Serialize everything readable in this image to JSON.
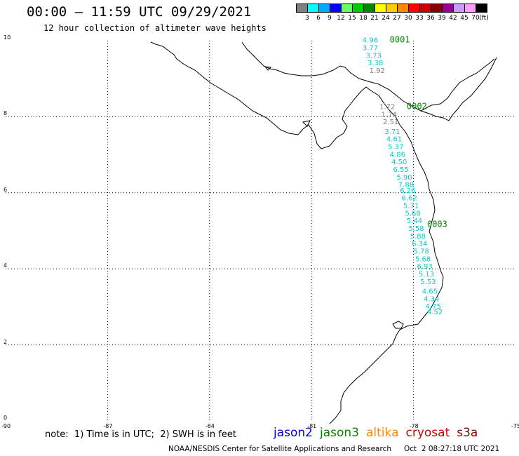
{
  "header": {
    "title": "00:00 – 11:59 UTC 09/29/2021",
    "subtitle": "12 hour collection of altimeter wave heights"
  },
  "legend": {
    "unit_label": "(ft)",
    "bins": [
      {
        "label": "3",
        "color": "#808080"
      },
      {
        "label": "6",
        "color": "#00ffff"
      },
      {
        "label": "9",
        "color": "#00aaff"
      },
      {
        "label": "12",
        "color": "#0000ff"
      },
      {
        "label": "15",
        "color": "#66ff66"
      },
      {
        "label": "18",
        "color": "#00cc00"
      },
      {
        "label": "21",
        "color": "#008800"
      },
      {
        "label": "24",
        "color": "#ffff00"
      },
      {
        "label": "27",
        "color": "#ffcc00"
      },
      {
        "label": "30",
        "color": "#ff8800"
      },
      {
        "label": "33",
        "color": "#ff0000"
      },
      {
        "label": "36",
        "color": "#cc0000"
      },
      {
        "label": "39",
        "color": "#880000"
      },
      {
        "label": "42",
        "color": "#990099"
      },
      {
        "label": "45",
        "color": "#cc99ff"
      },
      {
        "label": "70",
        "color": "#ff99ff"
      },
      {
        "label": "",
        "color": "#000000"
      }
    ]
  },
  "axes": {
    "lon_ticks": [
      "-90",
      "-87",
      "-84",
      "-81",
      "-78",
      "-75"
    ],
    "lat_ticks": [
      "0",
      "2",
      "4",
      "6",
      "8",
      "10"
    ]
  },
  "time_labels": [
    {
      "text": "0001",
      "lon": -78.7,
      "lat": 9.95
    },
    {
      "text": "0002",
      "lon": -78.2,
      "lat": 8.2
    },
    {
      "text": "0003",
      "lon": -77.6,
      "lat": 5.1
    }
  ],
  "observations": [
    {
      "lon": -79.5,
      "lat": 9.95,
      "swh": "4.96",
      "color": "#00cccc"
    },
    {
      "lon": -79.5,
      "lat": 9.75,
      "swh": "3.77",
      "color": "#00cccc"
    },
    {
      "lon": -79.4,
      "lat": 9.55,
      "swh": "3.73",
      "color": "#00cccc"
    },
    {
      "lon": -79.35,
      "lat": 9.35,
      "swh": "3.38",
      "color": "#00cccc"
    },
    {
      "lon": -79.3,
      "lat": 9.15,
      "swh": "1.92",
      "color": "#808080"
    },
    {
      "lon": -79.0,
      "lat": 8.2,
      "swh": "1.72",
      "color": "#808080"
    },
    {
      "lon": -78.95,
      "lat": 8.0,
      "swh": "1.74",
      "color": "#808080"
    },
    {
      "lon": -78.9,
      "lat": 7.8,
      "swh": "2.51",
      "color": "#808080"
    },
    {
      "lon": -78.85,
      "lat": 7.55,
      "swh": "3.71",
      "color": "#00cccc"
    },
    {
      "lon": -78.8,
      "lat": 7.35,
      "swh": "4.61",
      "color": "#00cccc"
    },
    {
      "lon": -78.75,
      "lat": 7.15,
      "swh": "5.37",
      "color": "#00cccc"
    },
    {
      "lon": -78.7,
      "lat": 6.95,
      "swh": "4.86",
      "color": "#00cccc"
    },
    {
      "lon": -78.65,
      "lat": 6.75,
      "swh": "4.50",
      "color": "#00cccc"
    },
    {
      "lon": -78.6,
      "lat": 6.55,
      "swh": "6.55",
      "color": "#00cccc"
    },
    {
      "lon": -78.5,
      "lat": 6.35,
      "swh": "5.90",
      "color": "#00cccc"
    },
    {
      "lon": -78.45,
      "lat": 6.15,
      "swh": "7.88",
      "color": "#00cccc"
    },
    {
      "lon": -78.4,
      "lat": 6.0,
      "swh": "6.26",
      "color": "#00cccc"
    },
    {
      "lon": -78.35,
      "lat": 5.8,
      "swh": "6.62",
      "color": "#00cccc"
    },
    {
      "lon": -78.3,
      "lat": 5.6,
      "swh": "5.71",
      "color": "#00cccc"
    },
    {
      "lon": -78.25,
      "lat": 5.4,
      "swh": "5.68",
      "color": "#00cccc"
    },
    {
      "lon": -78.2,
      "lat": 5.2,
      "swh": "5.44",
      "color": "#00cccc"
    },
    {
      "lon": -78.15,
      "lat": 5.0,
      "swh": "5.58",
      "color": "#00cccc"
    },
    {
      "lon": -78.1,
      "lat": 4.8,
      "swh": "5.88",
      "color": "#00cccc"
    },
    {
      "lon": -78.05,
      "lat": 4.6,
      "swh": "6.34",
      "color": "#00cccc"
    },
    {
      "lon": -78.0,
      "lat": 4.4,
      "swh": "5.78",
      "color": "#00cccc"
    },
    {
      "lon": -77.95,
      "lat": 4.2,
      "swh": "5.68",
      "color": "#00cccc"
    },
    {
      "lon": -77.9,
      "lat": 4.0,
      "swh": "6.93",
      "color": "#00cccc"
    },
    {
      "lon": -77.85,
      "lat": 3.8,
      "swh": "5.13",
      "color": "#00cccc"
    },
    {
      "lon": -77.8,
      "lat": 3.6,
      "swh": "5.53",
      "color": "#00cccc"
    },
    {
      "lon": -77.75,
      "lat": 3.35,
      "swh": "4.65",
      "color": "#00cccc"
    },
    {
      "lon": -77.7,
      "lat": 3.15,
      "swh": "4.34",
      "color": "#00cccc"
    },
    {
      "lon": -77.65,
      "lat": 2.95,
      "swh": "4.75",
      "color": "#00cccc"
    },
    {
      "lon": -77.6,
      "lat": 2.8,
      "swh": "4.52",
      "color": "#00cccc"
    }
  ],
  "footer": {
    "note": "note:  1) Time is in UTC;  2) SWH is in feet",
    "satellites": [
      {
        "name": "jason2",
        "color": "#0000cc"
      },
      {
        "name": "jason3",
        "color": "#008800"
      },
      {
        "name": "altika",
        "color": "#ff8800"
      },
      {
        "name": "cryosat",
        "color": "#cc0000"
      },
      {
        "name": "s3a",
        "color": "#880000"
      }
    ],
    "credit": "NOAA/NESDIS Center for Satellite Applications and Research",
    "generated": "Oct  2 08:27:18 UTC 2021"
  }
}
